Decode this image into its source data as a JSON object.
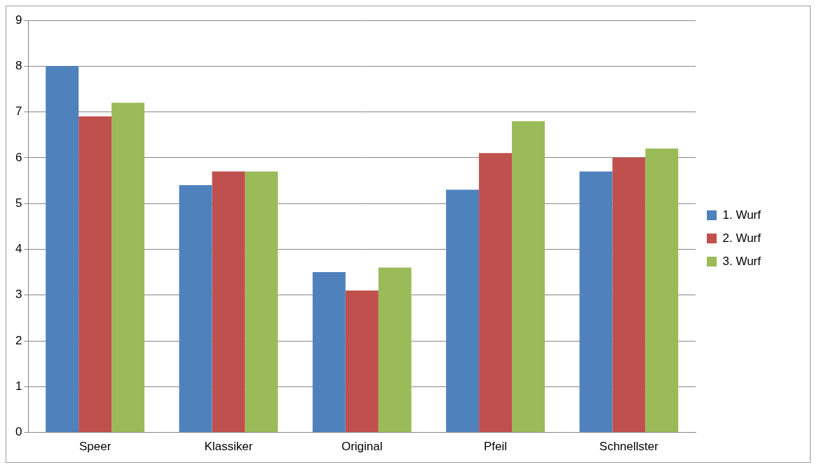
{
  "chart_data": {
    "type": "bar",
    "categories": [
      "Speer",
      "Klassiker",
      "Original",
      "Pfeil",
      "Schnellster"
    ],
    "series": [
      {
        "name": "1. Wurf",
        "color": "#4f81bd",
        "values": [
          8,
          5.4,
          3.5,
          5.3,
          5.7
        ]
      },
      {
        "name": "2. Wurf",
        "color": "#c0504d",
        "values": [
          6.9,
          5.7,
          3.1,
          6.1,
          6.0
        ]
      },
      {
        "name": "3. Wurf",
        "color": "#9bbb59",
        "values": [
          7.2,
          5.7,
          3.6,
          6.8,
          6.2
        ]
      }
    ],
    "ylim": [
      0,
      9
    ],
    "yticks": [
      0,
      1,
      2,
      3,
      4,
      5,
      6,
      7,
      8,
      9
    ],
    "grid": true,
    "legend": "right"
  }
}
